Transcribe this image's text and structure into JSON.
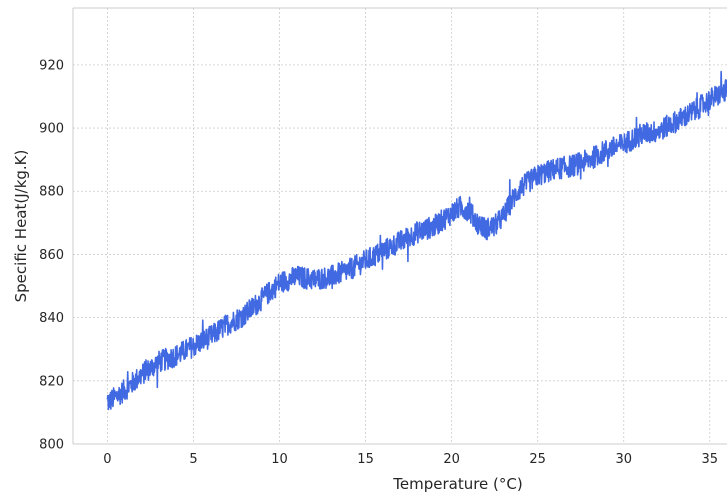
{
  "chart_data": {
    "type": "line",
    "title": "",
    "xlabel": "Temperature (°C)",
    "ylabel": "Specific Heat(J/kg.K)",
    "xlim": [
      -2,
      36
    ],
    "ylim": [
      800,
      938
    ],
    "xticks": [
      0,
      5,
      10,
      15,
      20,
      25,
      30,
      35
    ],
    "yticks": [
      800,
      820,
      840,
      860,
      880,
      900,
      920
    ],
    "grid": true,
    "legend": "none",
    "series": [
      {
        "color": "#4169E1",
        "x": [
          0,
          1,
          2,
          3,
          4,
          5,
          6,
          7,
          8,
          9,
          10,
          11,
          12,
          13,
          14,
          15,
          16,
          17,
          18,
          19,
          20,
          20.5,
          21,
          21.5,
          22,
          22.5,
          23,
          23.5,
          24,
          25,
          26,
          27,
          28,
          29,
          30,
          31,
          32,
          33,
          34,
          35,
          36
        ],
        "values": [
          813,
          817,
          822,
          826,
          828,
          831,
          834,
          838,
          841,
          846,
          851,
          853,
          852,
          853,
          855,
          858,
          861,
          864,
          867,
          869,
          873,
          875,
          874,
          870,
          868,
          869,
          872,
          877,
          881,
          885,
          887,
          888,
          890,
          893,
          895,
          898,
          899,
          902,
          905,
          909,
          912
        ],
        "noise": 3.5
      }
    ]
  }
}
